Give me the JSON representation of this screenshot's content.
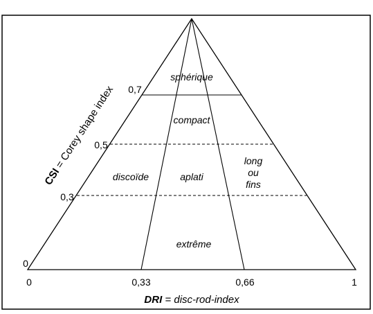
{
  "axis_left": {
    "title_abbr": "CSI",
    "title_rest": " = Corey shape index",
    "ticks": [
      "0",
      "0,3",
      "0,5",
      "0,7"
    ]
  },
  "axis_bottom": {
    "title_abbr": "DRI",
    "title_rest": " = disc-rod-index",
    "ticks": [
      "0",
      "0,33",
      "0,66",
      "1"
    ]
  },
  "regions": {
    "spherique": "sphérique",
    "compact": "compact",
    "discoide": "discoïde",
    "aplati": "aplati",
    "long": [
      "long",
      "ou",
      "fins"
    ],
    "extreme": "extrême"
  }
}
